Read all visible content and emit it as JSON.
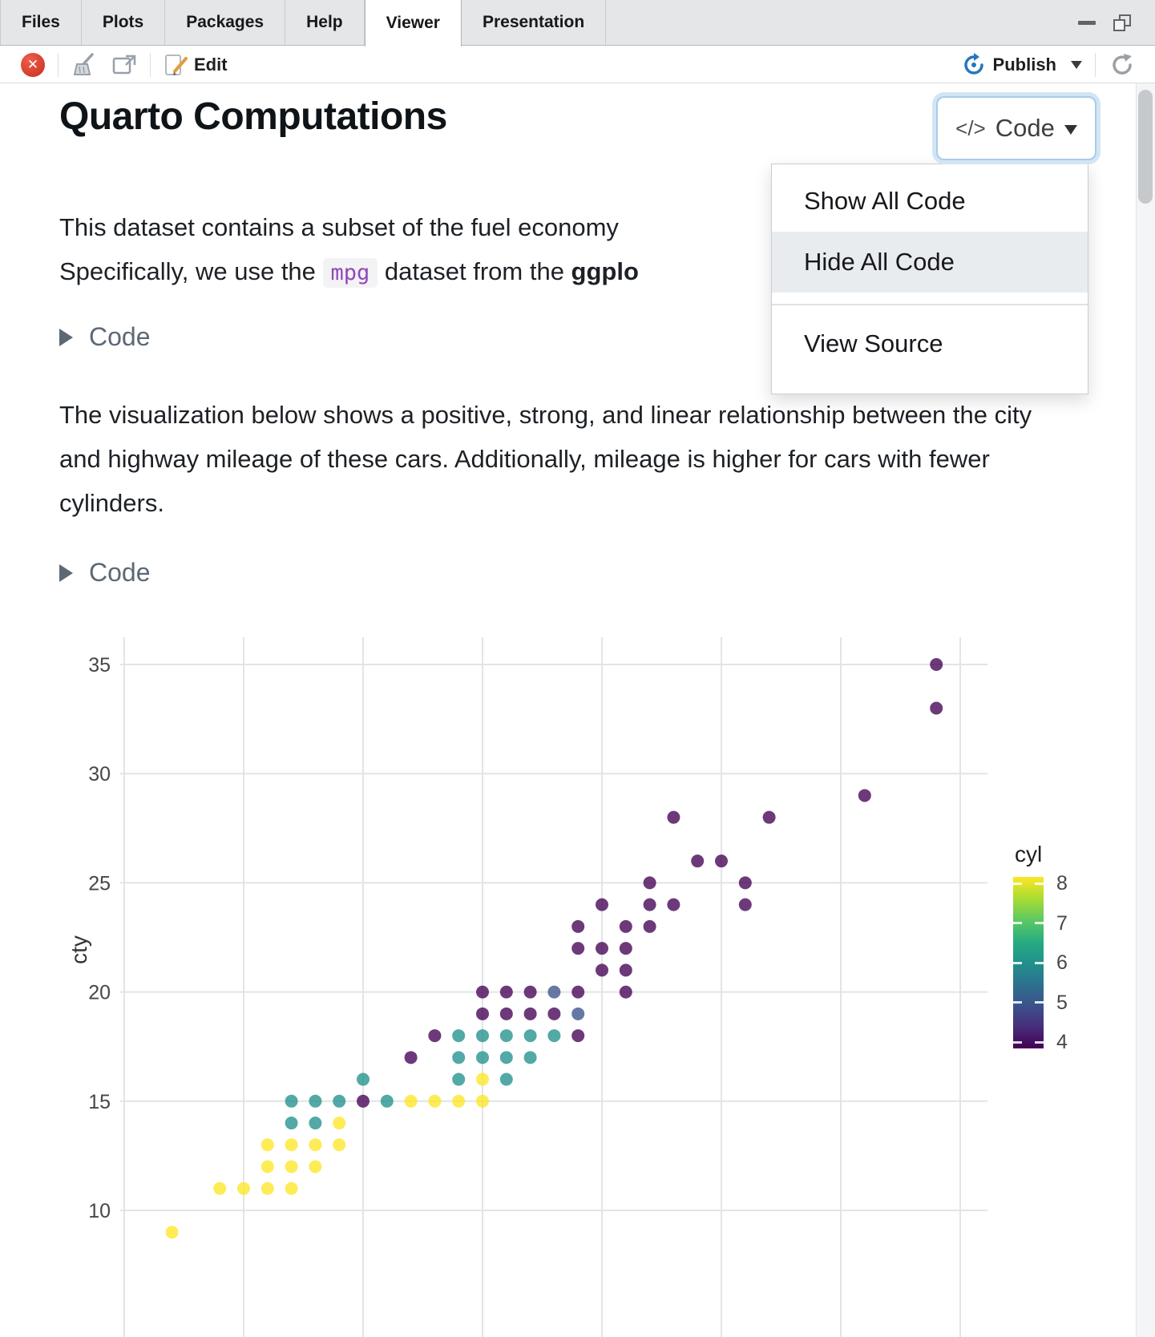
{
  "window": {
    "tabs": [
      {
        "label": "Files"
      },
      {
        "label": "Plots"
      },
      {
        "label": "Packages"
      },
      {
        "label": "Help"
      },
      {
        "label": "Viewer"
      },
      {
        "label": "Presentation"
      }
    ],
    "active_tab": "Viewer",
    "toolbar": {
      "stop_glyph": "✕",
      "edit_label": "Edit",
      "publish_label": "Publish"
    }
  },
  "document": {
    "title": "Quarto Computations",
    "code_button": {
      "icon_glyph": "</>",
      "label": "Code"
    },
    "code_menu": {
      "items": [
        "Show All Code",
        "Hide All Code",
        "View Source"
      ],
      "highlighted": "Hide All Code"
    },
    "paragraph1": {
      "line1": "This dataset contains a subset of the fuel economy",
      "line2_prefix": "Specifically, we use the ",
      "line2_code": "mpg",
      "line2_middle": " dataset from the ",
      "line2_bold_truncated": "ggplo"
    },
    "code_fold1_label": "Code",
    "paragraph2": "The visualization below shows a positive, strong, and linear relationship between the city and highway mileage of these cars. Additionally, mileage is higher for cars with fewer cylinders.",
    "code_fold2_label": "Code"
  },
  "chart_data": {
    "type": "scatter",
    "xlabel": "",
    "ylabel": "cty",
    "xlim": [
      10,
      45
    ],
    "ylim": [
      9,
      36
    ],
    "x_gridlines": [
      10,
      15,
      20,
      25,
      30,
      35,
      40,
      45
    ],
    "yticks": [
      10,
      15,
      20,
      25,
      30,
      35
    ],
    "grid": true,
    "legend": {
      "title": "cyl",
      "position": "right",
      "min": 4,
      "max": 8,
      "tick_values": [
        8,
        7,
        6,
        5,
        4
      ],
      "gradient": [
        "#440154",
        "#472d7b",
        "#3b528b",
        "#2c728e",
        "#21918c",
        "#27ad81",
        "#5ec962",
        "#aadc32",
        "#fde725"
      ]
    },
    "colors": {
      "4": "#440154",
      "5": "#3b528b",
      "6": "#21918c",
      "7": "#5ec962",
      "8": "#fde725"
    },
    "points_format": [
      "hwy",
      "cty",
      "cyl"
    ],
    "points": [
      [
        44,
        35,
        4
      ],
      [
        44,
        33,
        4
      ],
      [
        41,
        29,
        4
      ],
      [
        37,
        28,
        4
      ],
      [
        33,
        28,
        4
      ],
      [
        34,
        26,
        4
      ],
      [
        35,
        26,
        4
      ],
      [
        32,
        25,
        4
      ],
      [
        36,
        25,
        4
      ],
      [
        30,
        24,
        4
      ],
      [
        32,
        24,
        4
      ],
      [
        33,
        24,
        4
      ],
      [
        36,
        24,
        4
      ],
      [
        29,
        23,
        4
      ],
      [
        31,
        23,
        4
      ],
      [
        32,
        23,
        4
      ],
      [
        29,
        22,
        4
      ],
      [
        30,
        22,
        4
      ],
      [
        31,
        22,
        4
      ],
      [
        30,
        21,
        4
      ],
      [
        31,
        21,
        4
      ],
      [
        25,
        20,
        4
      ],
      [
        26,
        20,
        4
      ],
      [
        27,
        20,
        4
      ],
      [
        29,
        20,
        4
      ],
      [
        31,
        20,
        4
      ],
      [
        28,
        20,
        5
      ],
      [
        25,
        19,
        4
      ],
      [
        26,
        19,
        4
      ],
      [
        27,
        19,
        4
      ],
      [
        28,
        19,
        4
      ],
      [
        29,
        19,
        5
      ],
      [
        23,
        18,
        4
      ],
      [
        29,
        18,
        4
      ],
      [
        24,
        18,
        6
      ],
      [
        25,
        18,
        6
      ],
      [
        26,
        18,
        6
      ],
      [
        27,
        18,
        6
      ],
      [
        28,
        18,
        6
      ],
      [
        22,
        17,
        4
      ],
      [
        24,
        17,
        6
      ],
      [
        25,
        17,
        6
      ],
      [
        26,
        17,
        6
      ],
      [
        27,
        17,
        6
      ],
      [
        20,
        16,
        6
      ],
      [
        24,
        16,
        6
      ],
      [
        26,
        16,
        6
      ],
      [
        25,
        16,
        8
      ],
      [
        17,
        15,
        6
      ],
      [
        18,
        15,
        6
      ],
      [
        19,
        15,
        6
      ],
      [
        21,
        15,
        6
      ],
      [
        20,
        15,
        4
      ],
      [
        22,
        15,
        8
      ],
      [
        23,
        15,
        8
      ],
      [
        24,
        15,
        8
      ],
      [
        25,
        15,
        8
      ],
      [
        17,
        14,
        6
      ],
      [
        18,
        14,
        6
      ],
      [
        19,
        14,
        8
      ],
      [
        16,
        13,
        8
      ],
      [
        17,
        13,
        8
      ],
      [
        18,
        13,
        8
      ],
      [
        19,
        13,
        8
      ],
      [
        16,
        12,
        8
      ],
      [
        17,
        12,
        8
      ],
      [
        18,
        12,
        8
      ],
      [
        14,
        11,
        8
      ],
      [
        15,
        11,
        8
      ],
      [
        16,
        11,
        8
      ],
      [
        17,
        11,
        8
      ],
      [
        12,
        9,
        8
      ]
    ]
  }
}
